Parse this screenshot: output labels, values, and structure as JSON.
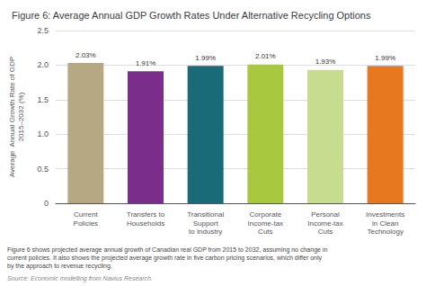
{
  "chart_data": {
    "type": "bar",
    "title": "Figure 6: Average Annual GDP Growth Rates Under Alternative Recycling Options",
    "categories": [
      "Current\nPolicies",
      "Transfers to\nHouseholds",
      "Transitional\nSupport\nto Industry",
      "Corporate\nIncome-tax\nCuts",
      "Personal\nIncome-tax\nCuts",
      "Investments\nin Clean\nTechnology"
    ],
    "values": [
      2.03,
      1.91,
      1.99,
      2.01,
      1.93,
      1.99
    ],
    "value_labels": [
      "2.03%",
      "1.91%",
      "1.99%",
      "2.01%",
      "1.93%",
      "1.99%"
    ],
    "data_labels": true,
    "colors": [
      "#b5a882",
      "#7b2d8b",
      "#1a6b78",
      "#a8c840",
      "#c8dc90",
      "#e87820"
    ],
    "ylabel": "Average  Annual Growth Rate of GDP\n2015–2032 (%)",
    "ylim": [
      0,
      2.5
    ],
    "yticks": [
      0,
      0.5,
      {
        "value": 1,
        "label": "1.0"
      },
      1.5,
      {
        "value": 2,
        "label": "2.0"
      },
      2.5
    ],
    "grid": true,
    "caption": "Figure 6 shows projected average annual growth of Canadian real GDP from 2015 to 2032, assuming no change in\ncurrent policies. It also shows the projected average growth rate in five carbon pricing scenarios, which differ only\nby the approach to revenue recycling.",
    "source": "Source: Economic modelling from Navius Research."
  }
}
